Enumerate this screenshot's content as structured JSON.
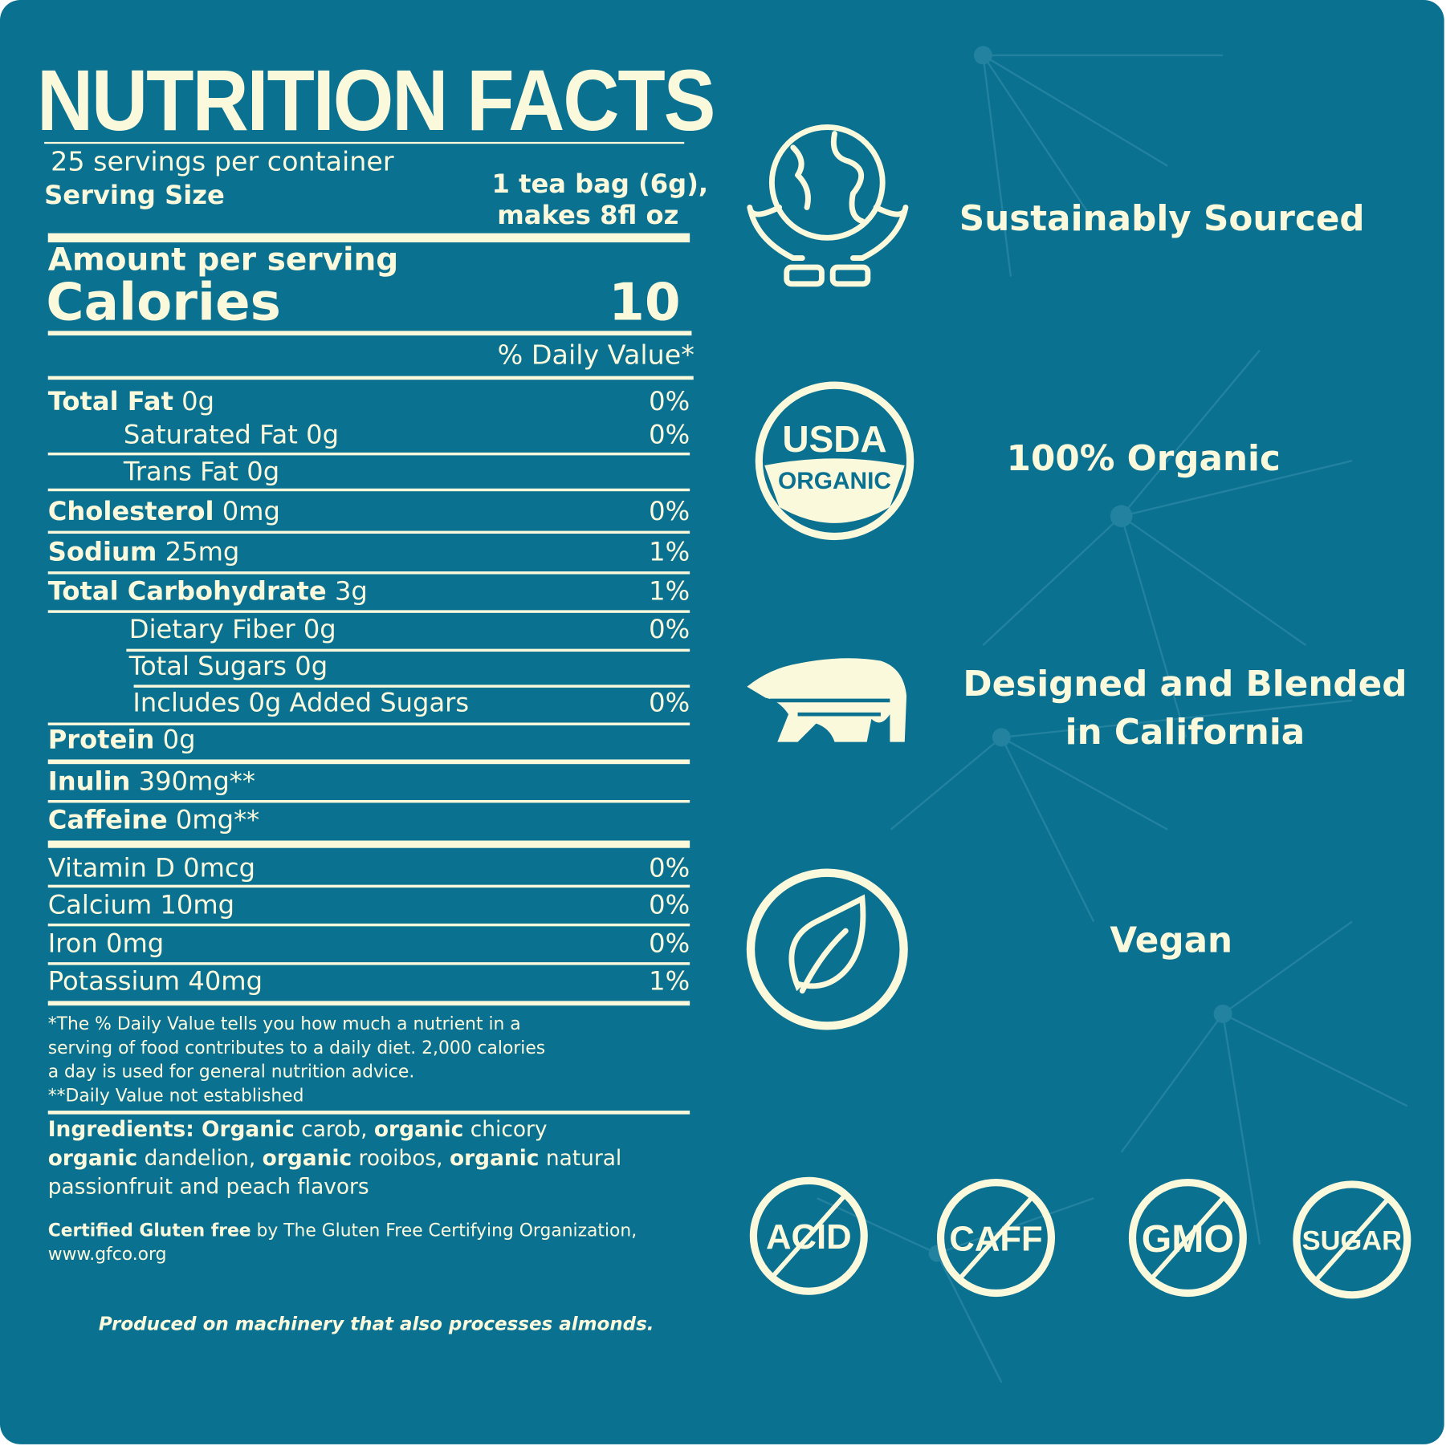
{
  "colors": {
    "background": "#0b7191",
    "foreground": "#fbf9dc"
  },
  "label": {
    "title": "NUTRITION FACTS",
    "servings_per_container": "25 servings per container",
    "serving_size_label": "Serving Size",
    "serving_size_line1": "1 tea bag (6g),",
    "serving_size_line2": "makes 8fl oz",
    "amount_per_serving": "Amount per serving",
    "calories_label": "Calories",
    "calories_value": "10",
    "daily_value_header": "% Daily Value*",
    "rows": [
      {
        "name": "Total Fat",
        "amount": "0g",
        "dv": "0%",
        "bold": true
      },
      {
        "name": "Saturated Fat",
        "amount": "0g",
        "dv": "0%",
        "bold": false
      },
      {
        "name": "Trans Fat",
        "amount": "0g",
        "dv": "",
        "bold": false
      },
      {
        "name": "Cholesterol",
        "amount": "0mg",
        "dv": "0%",
        "bold": true
      },
      {
        "name": "Sodium",
        "amount": "25mg",
        "dv": "1%",
        "bold": true
      },
      {
        "name": "Total Carbohydrate",
        "amount": "3g",
        "dv": "1%",
        "bold": true
      },
      {
        "name": "Dietary Fiber",
        "amount": "0g",
        "dv": "0%",
        "bold": false
      },
      {
        "name": "Total Sugars",
        "amount": "0g",
        "dv": "",
        "bold": false
      },
      {
        "name": "Includes 0g Added Sugars",
        "amount": "",
        "dv": "0%",
        "bold": false
      },
      {
        "name": "Protein",
        "amount": "0g",
        "dv": "",
        "bold": true
      },
      {
        "name": "Inulin",
        "amount": "390mg**",
        "dv": "",
        "bold": true
      },
      {
        "name": "Caffeine",
        "amount": "0mg**",
        "dv": "",
        "bold": true
      },
      {
        "name": "Vitamin D",
        "amount": "0mcg",
        "dv": "0%",
        "bold": false
      },
      {
        "name": "Calcium",
        "amount": "10mg",
        "dv": "0%",
        "bold": false
      },
      {
        "name": "Iron",
        "amount": "0mg",
        "dv": "0%",
        "bold": false
      },
      {
        "name": "Potassium",
        "amount": "40mg",
        "dv": "1%",
        "bold": false
      }
    ],
    "footnote_lines": [
      "*The % Daily Value tells you how much a nutrient in a",
      "serving of food contributes to a daily diet. 2,000 calories",
      "a day is used for general nutrition advice.",
      "**Daily Value not established"
    ],
    "ingredients_lines": [
      [
        {
          "t": "Ingredients: Organic",
          "b": true
        },
        {
          "t": " carob, ",
          "b": false
        },
        {
          "t": "organic",
          "b": true
        },
        {
          "t": " chicory",
          "b": false
        }
      ],
      [
        {
          "t": "organic",
          "b": true
        },
        {
          "t": " dandelion, ",
          "b": false
        },
        {
          "t": "organic",
          "b": true
        },
        {
          "t": " rooibos, ",
          "b": false
        },
        {
          "t": "organic",
          "b": true
        },
        {
          "t": " natural",
          "b": false
        }
      ],
      [
        {
          "t": "passionfruit and peach flavors",
          "b": false
        }
      ]
    ],
    "certified_bold": "Certified Gluten free",
    "certified_rest": " by The Gluten Free Certifying Organization,",
    "certified_url": "www.gfco.org",
    "allergen_note": "Produced on machinery that also processes almonds."
  },
  "features": [
    {
      "icon": "globe-in-hands-icon",
      "label": "Sustainably Sourced"
    },
    {
      "icon": "usda-organic-seal-icon",
      "label": "100% Organic",
      "seal_top": "USDA",
      "seal_bottom": "ORGANIC"
    },
    {
      "icon": "california-bear-icon",
      "label_line1": "Designed and Blended",
      "label_line2": "in California"
    },
    {
      "icon": "leaf-icon",
      "label": "Vegan"
    }
  ],
  "free_from": [
    {
      "icon": "no-acid-icon",
      "text": "ACID"
    },
    {
      "icon": "no-caffeine-icon",
      "text": "CAFF"
    },
    {
      "icon": "no-gmo-icon",
      "text": "GMO"
    },
    {
      "icon": "no-sugar-icon",
      "text": "SUGAR"
    }
  ]
}
